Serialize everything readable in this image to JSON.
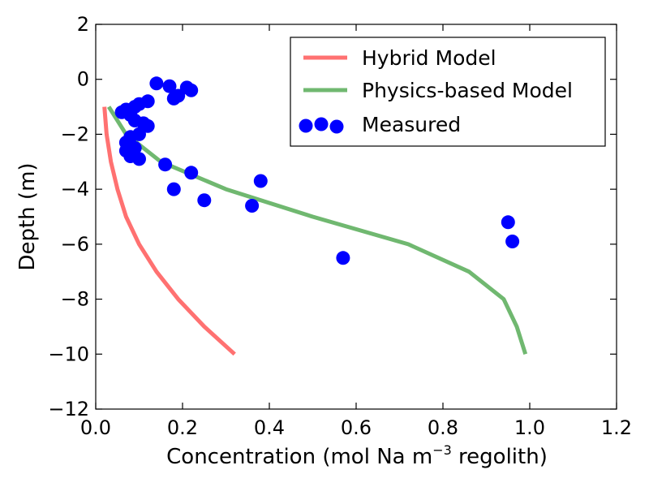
{
  "chart_data": {
    "type": "line",
    "title": "",
    "xlabel_main": "Concentration (mol Na m",
    "xlabel_sup": "−3",
    "xlabel_tail": " regolith)",
    "ylabel": "Depth (m)",
    "xlim": [
      0.0,
      1.2
    ],
    "ylim": [
      -12,
      2
    ],
    "x_ticks": [
      {
        "value": 0.0,
        "label": "0.0"
      },
      {
        "value": 0.2,
        "label": "0.2"
      },
      {
        "value": 0.4,
        "label": "0.4"
      },
      {
        "value": 0.6,
        "label": "0.6"
      },
      {
        "value": 0.8,
        "label": "0.8"
      },
      {
        "value": 1.0,
        "label": "1.0"
      },
      {
        "value": 1.2,
        "label": "1.2"
      }
    ],
    "y_ticks": [
      {
        "value": 2,
        "label": "2"
      },
      {
        "value": 0,
        "label": "0"
      },
      {
        "value": -2,
        "label": "−2"
      },
      {
        "value": -4,
        "label": "−4"
      },
      {
        "value": -6,
        "label": "−6"
      },
      {
        "value": -8,
        "label": "−8"
      },
      {
        "value": -10,
        "label": "−10"
      },
      {
        "value": -12,
        "label": "−12"
      }
    ],
    "grid": false,
    "legend_position": "top-right",
    "series": [
      {
        "name": "Hybrid Model",
        "kind": "line",
        "color": "#ff4d4d",
        "points": [
          [
            0.02,
            -1.0
          ],
          [
            0.025,
            -2.0
          ],
          [
            0.035,
            -3.0
          ],
          [
            0.05,
            -4.0
          ],
          [
            0.07,
            -5.0
          ],
          [
            0.1,
            -6.0
          ],
          [
            0.14,
            -7.0
          ],
          [
            0.19,
            -8.0
          ],
          [
            0.25,
            -9.0
          ],
          [
            0.32,
            -10.0
          ]
        ]
      },
      {
        "name": "Physics-based Model",
        "kind": "line",
        "color": "#4ca64c",
        "points": [
          [
            0.03,
            -1.0
          ],
          [
            0.07,
            -2.0
          ],
          [
            0.15,
            -3.0
          ],
          [
            0.3,
            -4.0
          ],
          [
            0.5,
            -5.0
          ],
          [
            0.72,
            -6.0
          ],
          [
            0.86,
            -7.0
          ],
          [
            0.94,
            -8.0
          ],
          [
            0.97,
            -9.0
          ],
          [
            0.99,
            -10.0
          ]
        ]
      },
      {
        "name": "Measured",
        "kind": "scatter",
        "color": "#0000ff",
        "points": [
          [
            0.14,
            -0.15
          ],
          [
            0.17,
            -0.25
          ],
          [
            0.21,
            -0.3
          ],
          [
            0.22,
            -0.4
          ],
          [
            0.19,
            -0.6
          ],
          [
            0.18,
            -0.7
          ],
          [
            0.12,
            -0.8
          ],
          [
            0.1,
            -0.9
          ],
          [
            0.09,
            -1.0
          ],
          [
            0.07,
            -1.1
          ],
          [
            0.06,
            -1.2
          ],
          [
            0.08,
            -1.3
          ],
          [
            0.09,
            -1.5
          ],
          [
            0.11,
            -1.6
          ],
          [
            0.12,
            -1.7
          ],
          [
            0.1,
            -2.0
          ],
          [
            0.08,
            -2.1
          ],
          [
            0.07,
            -2.3
          ],
          [
            0.09,
            -2.5
          ],
          [
            0.07,
            -2.6
          ],
          [
            0.08,
            -2.8
          ],
          [
            0.1,
            -2.9
          ],
          [
            0.16,
            -3.1
          ],
          [
            0.22,
            -3.4
          ],
          [
            0.38,
            -3.7
          ],
          [
            0.18,
            -4.0
          ],
          [
            0.25,
            -4.4
          ],
          [
            0.36,
            -4.6
          ],
          [
            0.57,
            -6.5
          ],
          [
            0.95,
            -5.2
          ],
          [
            0.96,
            -5.9
          ]
        ]
      }
    ]
  }
}
